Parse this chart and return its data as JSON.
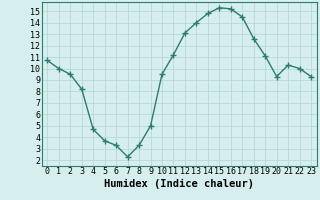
{
  "x": [
    0,
    1,
    2,
    3,
    4,
    5,
    6,
    7,
    8,
    9,
    10,
    11,
    12,
    13,
    14,
    15,
    16,
    17,
    18,
    19,
    20,
    21,
    22,
    23
  ],
  "y": [
    10.7,
    10.0,
    9.5,
    8.2,
    4.7,
    3.7,
    3.3,
    2.3,
    3.3,
    5.0,
    9.5,
    11.2,
    13.1,
    14.0,
    14.8,
    15.3,
    15.2,
    14.5,
    12.6,
    11.1,
    9.3,
    10.3,
    10.0,
    9.3
  ],
  "line_color": "#2d7d6e",
  "marker": "+",
  "markersize": 4,
  "linewidth": 1.0,
  "bg_color": "#d6eeee",
  "grid_color": "#b8d8d8",
  "axis_label": "Humidex (Indice chaleur)",
  "xlim": [
    -0.5,
    23.5
  ],
  "ylim": [
    1.5,
    15.8
  ],
  "yticks": [
    2,
    3,
    4,
    5,
    6,
    7,
    8,
    9,
    10,
    11,
    12,
    13,
    14,
    15
  ],
  "xticks": [
    0,
    1,
    2,
    3,
    4,
    5,
    6,
    7,
    8,
    9,
    10,
    11,
    12,
    13,
    14,
    15,
    16,
    17,
    18,
    19,
    20,
    21,
    22,
    23
  ],
  "tick_fontsize": 6,
  "label_fontsize": 7.5,
  "label_fontweight": "bold"
}
